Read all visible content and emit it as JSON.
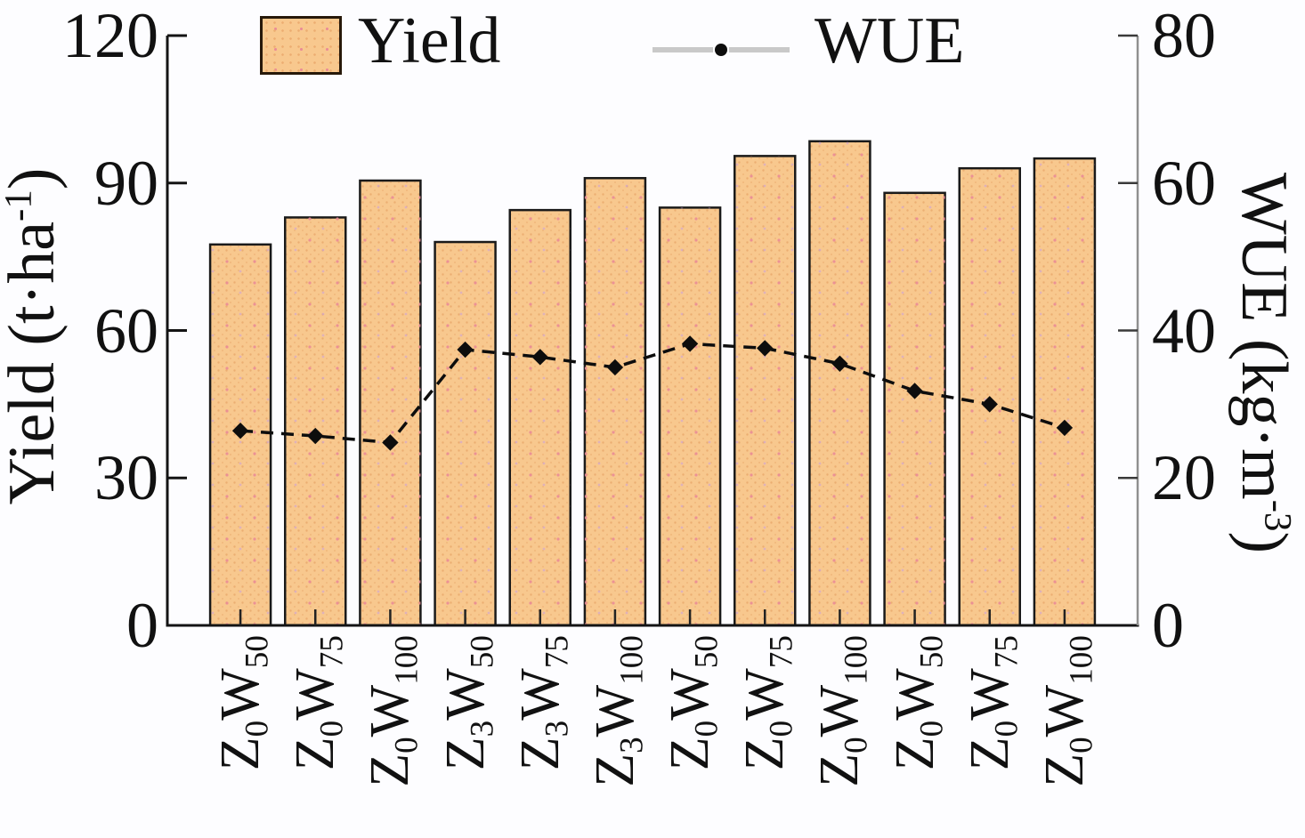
{
  "figure": {
    "type_note": "combined bar and line chart, no title shown"
  },
  "chart_data": {
    "type": "bar",
    "overlay_type": "line",
    "categories_parts": [
      [
        "Z",
        "0",
        "W",
        "50"
      ],
      [
        "Z",
        "0",
        "W",
        "75"
      ],
      [
        "Z",
        "0",
        "W",
        "100"
      ],
      [
        "Z",
        "3",
        "W",
        "50"
      ],
      [
        "Z",
        "3",
        "W",
        "75"
      ],
      [
        "Z",
        "3",
        "W",
        "100"
      ],
      [
        "Z",
        "0",
        "W",
        "50"
      ],
      [
        "Z",
        "0",
        "W",
        "75"
      ],
      [
        "Z",
        "0",
        "W",
        "100"
      ],
      [
        "Z",
        "0",
        "W",
        "50"
      ],
      [
        "Z",
        "0",
        "W",
        "75"
      ],
      [
        "Z",
        "0",
        "W",
        "100"
      ]
    ],
    "series": [
      {
        "name": "Yield",
        "type": "bar",
        "axis": "left",
        "values": [
          77.5,
          83,
          90.5,
          78,
          84.5,
          91,
          85,
          95.5,
          98.5,
          88,
          93,
          95
        ]
      },
      {
        "name": "WUE",
        "type": "line",
        "axis": "right",
        "values": [
          26.4,
          25.7,
          24.8,
          37.4,
          36.4,
          35.0,
          38.2,
          37.6,
          35.5,
          31.8,
          30.0,
          26.8
        ]
      }
    ],
    "left_axis": {
      "title_pre": "Yield (t·ha",
      "title_sup": "-1",
      "title_post": ")",
      "ticks": [
        120,
        90,
        60,
        30,
        0
      ],
      "range": [
        0,
        120
      ]
    },
    "right_axis": {
      "title_pre": "WUE (kg·m",
      "title_sup": "-3",
      "title_post": ")",
      "ticks": [
        80,
        60,
        40,
        20,
        0
      ],
      "range": [
        0,
        80
      ]
    },
    "legend": [
      {
        "label": "Yield",
        "marker": "bar-swatch"
      },
      {
        "label": "WUE",
        "marker": "line-dot-marker"
      }
    ],
    "grid": "off",
    "legend_position": "top",
    "colors": {
      "bar_fill": "#F8C88E",
      "bar_dot": "#ECAE72",
      "bar_accent_dot": "#EA8C96",
      "bar_border": "#1a1a1a",
      "line": "#0d0d0d",
      "legend_line": "#c9c9c9",
      "axis": "#141414",
      "right_axis_line": "#8f8f8f"
    }
  }
}
